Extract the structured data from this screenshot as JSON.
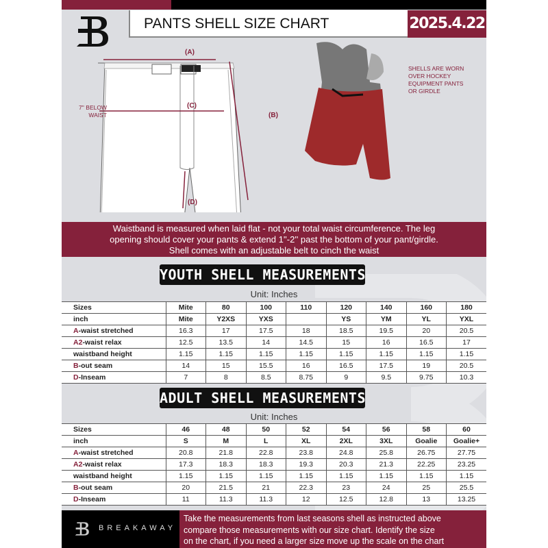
{
  "header": {
    "title": "PANTS SHELL SIZE CHART",
    "date": "2025.4.22",
    "logo_letter": "B"
  },
  "diagram": {
    "label_a": "(A)",
    "label b": "(B)",
    "label_b": "(B)",
    "label_c": "(C)",
    "label_d": "(D)",
    "below_waist_line1": "7'' BELOW",
    "below_waist_line2": "WAIST",
    "shell_note": [
      "SHELLS ARE WORN",
      "OVER HOCKEY",
      "EQUIPMENT PANTS",
      "OR GIRDLE"
    ]
  },
  "banner": {
    "lines": [
      "Waistband is measured when laid flat - not your total waist circumference. The leg",
      "opening should cover your pants & extend 1''-2'' past the bottom of your pant/girdle.",
      "Shell comes with an adjustable belt to cinch the waist"
    ]
  },
  "youth": {
    "title": "YOUTH SHELL MEASUREMENTS",
    "unit": "Unit: Inches",
    "rows": [
      {
        "prefix": "",
        "label": "Sizes",
        "values": [
          "Mite",
          "80",
          "100",
          "110",
          "120",
          "140",
          "160",
          "180"
        ]
      },
      {
        "prefix": "",
        "label": "inch",
        "values": [
          "Mite",
          "Y2XS",
          "YXS",
          "",
          "YS",
          "YM",
          "YL",
          "YXL"
        ]
      },
      {
        "prefix": "A",
        "label": "-waist stretched",
        "values": [
          "16.3",
          "17",
          "17.5",
          "18",
          "18.5",
          "19.5",
          "20",
          "20.5"
        ]
      },
      {
        "prefix": "A2",
        "label": "-waist relax",
        "values": [
          "12.5",
          "13.5",
          "14",
          "14.5",
          "15",
          "16",
          "16.5",
          "17"
        ]
      },
      {
        "prefix": "",
        "label": "waistband height",
        "values": [
          "1.15",
          "1.15",
          "1.15",
          "1.15",
          "1.15",
          "1.15",
          "1.15",
          "1.15"
        ]
      },
      {
        "prefix": "B",
        "label": "-out seam",
        "values": [
          "14",
          "15",
          "15.5",
          "16",
          "16.5",
          "17.5",
          "19",
          "20.5"
        ]
      },
      {
        "prefix": "D",
        "label": "-Inseam",
        "values": [
          "7",
          "8",
          "8.5",
          "8.75",
          "9",
          "9.5",
          "9.75",
          "10.3"
        ]
      }
    ]
  },
  "adult": {
    "title": "ADULT SHELL MEASUREMENTS",
    "unit": "Unit: Inches",
    "rows": [
      {
        "prefix": "",
        "label": "Sizes",
        "values": [
          "46",
          "48",
          "50",
          "52",
          "54",
          "56",
          "58",
          "60"
        ]
      },
      {
        "prefix": "",
        "label": "inch",
        "values": [
          "S",
          "M",
          "L",
          "XL",
          "2XL",
          "3XL",
          "Goalie",
          "Goalie+"
        ]
      },
      {
        "prefix": "A",
        "label": "-waist stretched",
        "values": [
          "20.8",
          "21.8",
          "22.8",
          "23.8",
          "24.8",
          "25.8",
          "26.75",
          "27.75"
        ]
      },
      {
        "prefix": "A2",
        "label": "-waist relax",
        "values": [
          "17.3",
          "18.3",
          "18.3",
          "19.3",
          "20.3",
          "21.3",
          "22.25",
          "23.25"
        ]
      },
      {
        "prefix": "",
        "label": "waistband height",
        "values": [
          "1.15",
          "1.15",
          "1.15",
          "1.15",
          "1.15",
          "1.15",
          "1.15",
          "1.15"
        ]
      },
      {
        "prefix": "B",
        "label": "-out seam",
        "values": [
          "20",
          "21.5",
          "21",
          "22.3",
          "23",
          "24",
          "25",
          "25.5"
        ]
      },
      {
        "prefix": "D",
        "label": "-Inseam",
        "values": [
          "11",
          "11.3",
          "11.3",
          "12",
          "12.5",
          "12.8",
          "13",
          "13.25"
        ]
      }
    ]
  },
  "footer": {
    "brand": "BREAKAWAY",
    "lines": [
      "Take the measurements from last seasons shell as instructed above",
      "compare those measurements  with our size chart. Identify the size",
      "on the chart, if you need a larger size move up the scale on the chart"
    ]
  },
  "colors": {
    "brand": "#85213b",
    "background": "#dcdde1",
    "dark": "#000000"
  }
}
